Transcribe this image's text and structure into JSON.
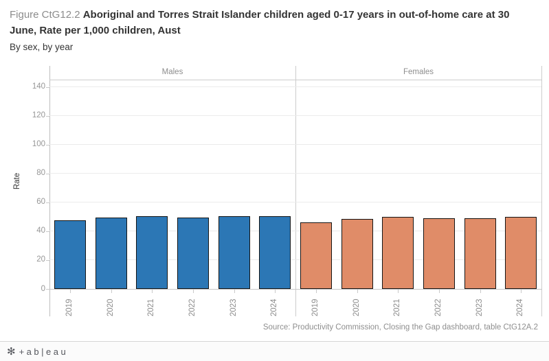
{
  "title": {
    "prefix": "Figure CtG12.2",
    "main": "Aboriginal and Torres Strait Islander children aged 0-17 years in out-of-home care at 30 June, Rate per 1,000 children, Aust",
    "subtitle": "By sex, by year"
  },
  "chart_data": {
    "type": "bar",
    "title": "Aboriginal and Torres Strait Islander children aged 0-17 years in out-of-home care at 30 June, Rate per 1,000 children, Aust",
    "subtitle": "By sex, by year",
    "panels": [
      "Males",
      "Females"
    ],
    "categories": [
      "2019",
      "2020",
      "2021",
      "2022",
      "2023",
      "2024"
    ],
    "series": [
      {
        "name": "Males",
        "color": "#2C77B5",
        "values": [
          47.7,
          49.3,
          50.6,
          49.3,
          50.2,
          50.2
        ]
      },
      {
        "name": "Females",
        "color": "#E08C68",
        "values": [
          46.2,
          48.6,
          50.0,
          49.0,
          49.0,
          49.7
        ]
      }
    ],
    "xlabel": "",
    "ylabel": "Rate",
    "yticks": [
      0,
      20,
      40,
      60,
      80,
      100,
      120,
      140
    ],
    "ylim": [
      0,
      145
    ],
    "grid": true,
    "bar_border_color": "#141414",
    "legend_position": "panel-headers"
  },
  "source": "Source: Productivity Commission, Closing the Gap dashboard, table CtG12A.2",
  "footer": {
    "logo_icon": "tableau-logo",
    "wordmark": "+ab|eau"
  }
}
